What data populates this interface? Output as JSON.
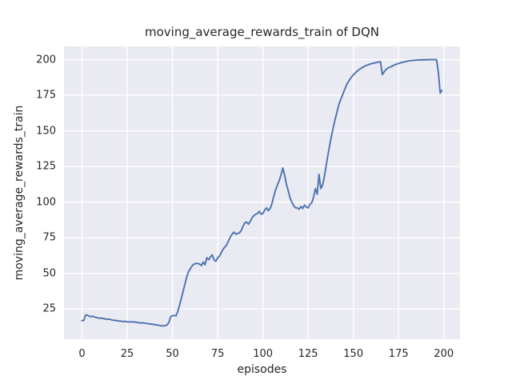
{
  "figure": {
    "title": "moving_average_rewards_train of DQN",
    "xlabel": "episodes",
    "ylabel": "moving_average_rewards_train"
  },
  "chart_data": {
    "type": "line",
    "title": "moving_average_rewards_train of DQN",
    "xlabel": "episodes",
    "ylabel": "moving_average_rewards_train",
    "x_ticks": [
      0,
      25,
      50,
      75,
      100,
      125,
      150,
      175,
      200
    ],
    "y_ticks": [
      25,
      50,
      75,
      100,
      125,
      150,
      175,
      200
    ],
    "xlim": [
      -9.95,
      208.95
    ],
    "ylim": [
      3.8,
      209.3
    ],
    "grid": true,
    "legend_position": "none",
    "style": {
      "axes_background": "#eaeaf2",
      "grid_color": "#ffffff",
      "line_color": "#4c72b0",
      "text_color": "#262626",
      "figure_background": "#ffffff"
    },
    "series": [
      {
        "name": "moving_average_rewards_train",
        "x_start": 0,
        "x_step": 1,
        "values": [
          16.8,
          17.0,
          20.8,
          20.6,
          19.9,
          19.6,
          19.9,
          19.4,
          19.0,
          18.7,
          18.5,
          18.6,
          18.2,
          18.0,
          17.7,
          17.9,
          17.5,
          17.2,
          17.0,
          16.9,
          16.7,
          16.5,
          16.4,
          16.2,
          16.3,
          16.0,
          15.9,
          16.1,
          15.8,
          16.0,
          15.6,
          15.5,
          15.3,
          15.2,
          15.3,
          15.0,
          14.8,
          14.6,
          14.5,
          14.3,
          14.1,
          13.9,
          13.7,
          13.4,
          13.2,
          13.1,
          13.3,
          13.8,
          15.5,
          19.5,
          20.3,
          20.5,
          20.2,
          23.5,
          28.0,
          33.0,
          38.0,
          43.0,
          48.0,
          51.5,
          53.5,
          55.5,
          56.5,
          57.0,
          57.0,
          56.5,
          55.5,
          58.0,
          56.0,
          61.0,
          59.5,
          61.5,
          63.0,
          59.5,
          58.5,
          61.0,
          62.0,
          64.5,
          67.0,
          68.5,
          70.0,
          73.0,
          75.5,
          77.5,
          79.0,
          77.5,
          78.0,
          78.5,
          80.0,
          83.0,
          85.5,
          86.0,
          84.5,
          86.5,
          89.0,
          90.5,
          91.5,
          92.0,
          93.5,
          91.5,
          92.0,
          94.5,
          96.0,
          94.0,
          95.5,
          99.0,
          104.0,
          108.5,
          112.0,
          115.0,
          119.0,
          124.0,
          119.0,
          112.5,
          108.0,
          103.0,
          100.0,
          97.5,
          96.0,
          96.0,
          95.0,
          97.0,
          95.5,
          98.0,
          96.5,
          96.0,
          98.5,
          99.5,
          103.5,
          109.5,
          105.5,
          119.5,
          109.5,
          112.0,
          118.0,
          126.0,
          133.5,
          140.5,
          147.0,
          153.0,
          158.5,
          163.5,
          168.5,
          172.0,
          175.0,
          178.5,
          181.5,
          184.0,
          186.0,
          187.8,
          189.3,
          190.6,
          191.8,
          192.8,
          193.7,
          194.5,
          195.2,
          195.8,
          196.3,
          196.8,
          197.2,
          197.5,
          197.8,
          198.1,
          198.3,
          198.5,
          189.5,
          191.5,
          193.0,
          194.0,
          194.6,
          195.2,
          195.8,
          196.4,
          196.9,
          197.3,
          197.7,
          198.1,
          198.4,
          198.7,
          199.0,
          199.2,
          199.4,
          199.5,
          199.6,
          199.7,
          199.8,
          199.8,
          199.9,
          199.9,
          199.9,
          200.0,
          200.0,
          200.0,
          200.0,
          200.0,
          200.0,
          191.0,
          176.5,
          178.5
        ]
      }
    ]
  }
}
